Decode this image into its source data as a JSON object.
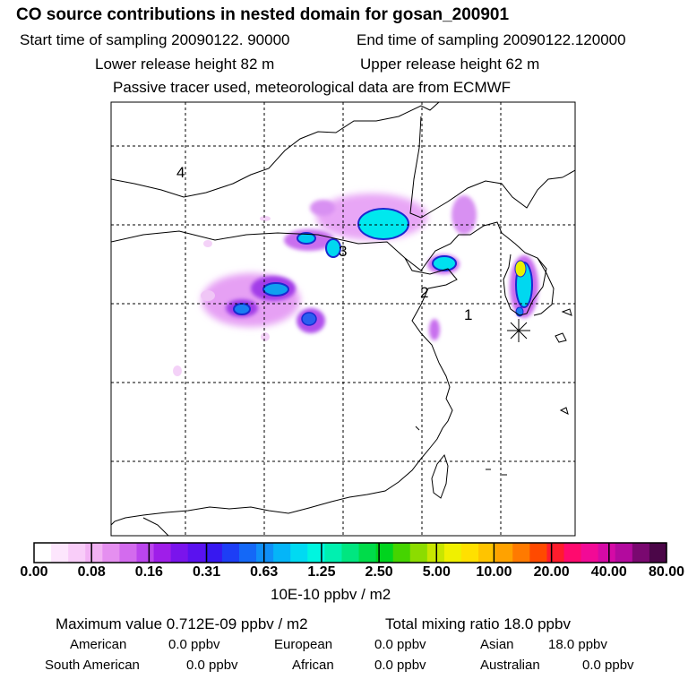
{
  "header": {
    "title": "CO  source contributions in nested domain for gosan_200901",
    "start_label": "Start time of sampling 20090122. 90000",
    "end_label": "End time of sampling 20090122.120000",
    "lower_label": "Lower release height   82 m",
    "upper_label": "Upper release height   62 m",
    "tracer_label": "Passive tracer used, meteorological data are from ECMWF"
  },
  "map": {
    "region_numbers": [
      "1",
      "2",
      "3",
      "4"
    ],
    "receptor_marker": "asterisk-icon",
    "colors": {
      "coast": "#000000",
      "grid": "#000000",
      "frame": "#000000"
    }
  },
  "colorbar": {
    "tick_labels": [
      "0.00",
      "0.08",
      "0.16",
      "0.31",
      "0.63",
      "1.25",
      "2.50",
      "5.00",
      "10.00",
      "20.00",
      "40.00",
      "80.00"
    ],
    "colors": [
      "#ffffff",
      "#fde6fd",
      "#f9cdf9",
      "#f2b2f4",
      "#e58ff0",
      "#d36bee",
      "#bb45ed",
      "#9f1ee9",
      "#7a14ec",
      "#5a12ef",
      "#3718f0",
      "#1d3ef6",
      "#1468f7",
      "#0f8ff8",
      "#05b5f8",
      "#00daf2",
      "#00f5e0",
      "#00f0b0",
      "#00e680",
      "#00dc4a",
      "#00d41e",
      "#45d400",
      "#8cdc00",
      "#c8e600",
      "#f0f000",
      "#ffe000",
      "#ffc400",
      "#ffa200",
      "#ff7a00",
      "#ff4a00",
      "#ff1c2d",
      "#ff0a6e",
      "#f20a96",
      "#d50aa6",
      "#b30a9e",
      "#7a0870",
      "#4b0648"
    ],
    "unit_label": "10E-10 ppbv / m2"
  },
  "stats": {
    "maximum": "Maximum value  0.712E-09 ppbv / m2",
    "total": "Total mixing ratio      18.0 ppbv",
    "american": "American",
    "american_val": "0.0 ppbv",
    "european": "European",
    "european_val": "0.0 ppbv",
    "asian": "Asian",
    "asian_val": "18.0 ppbv",
    "south_american": "South American",
    "south_american_val": "0.0 ppbv",
    "african": "African",
    "african_val": "0.0 ppbv",
    "australian": "Australian",
    "australian_val": "0.0 ppbv"
  }
}
